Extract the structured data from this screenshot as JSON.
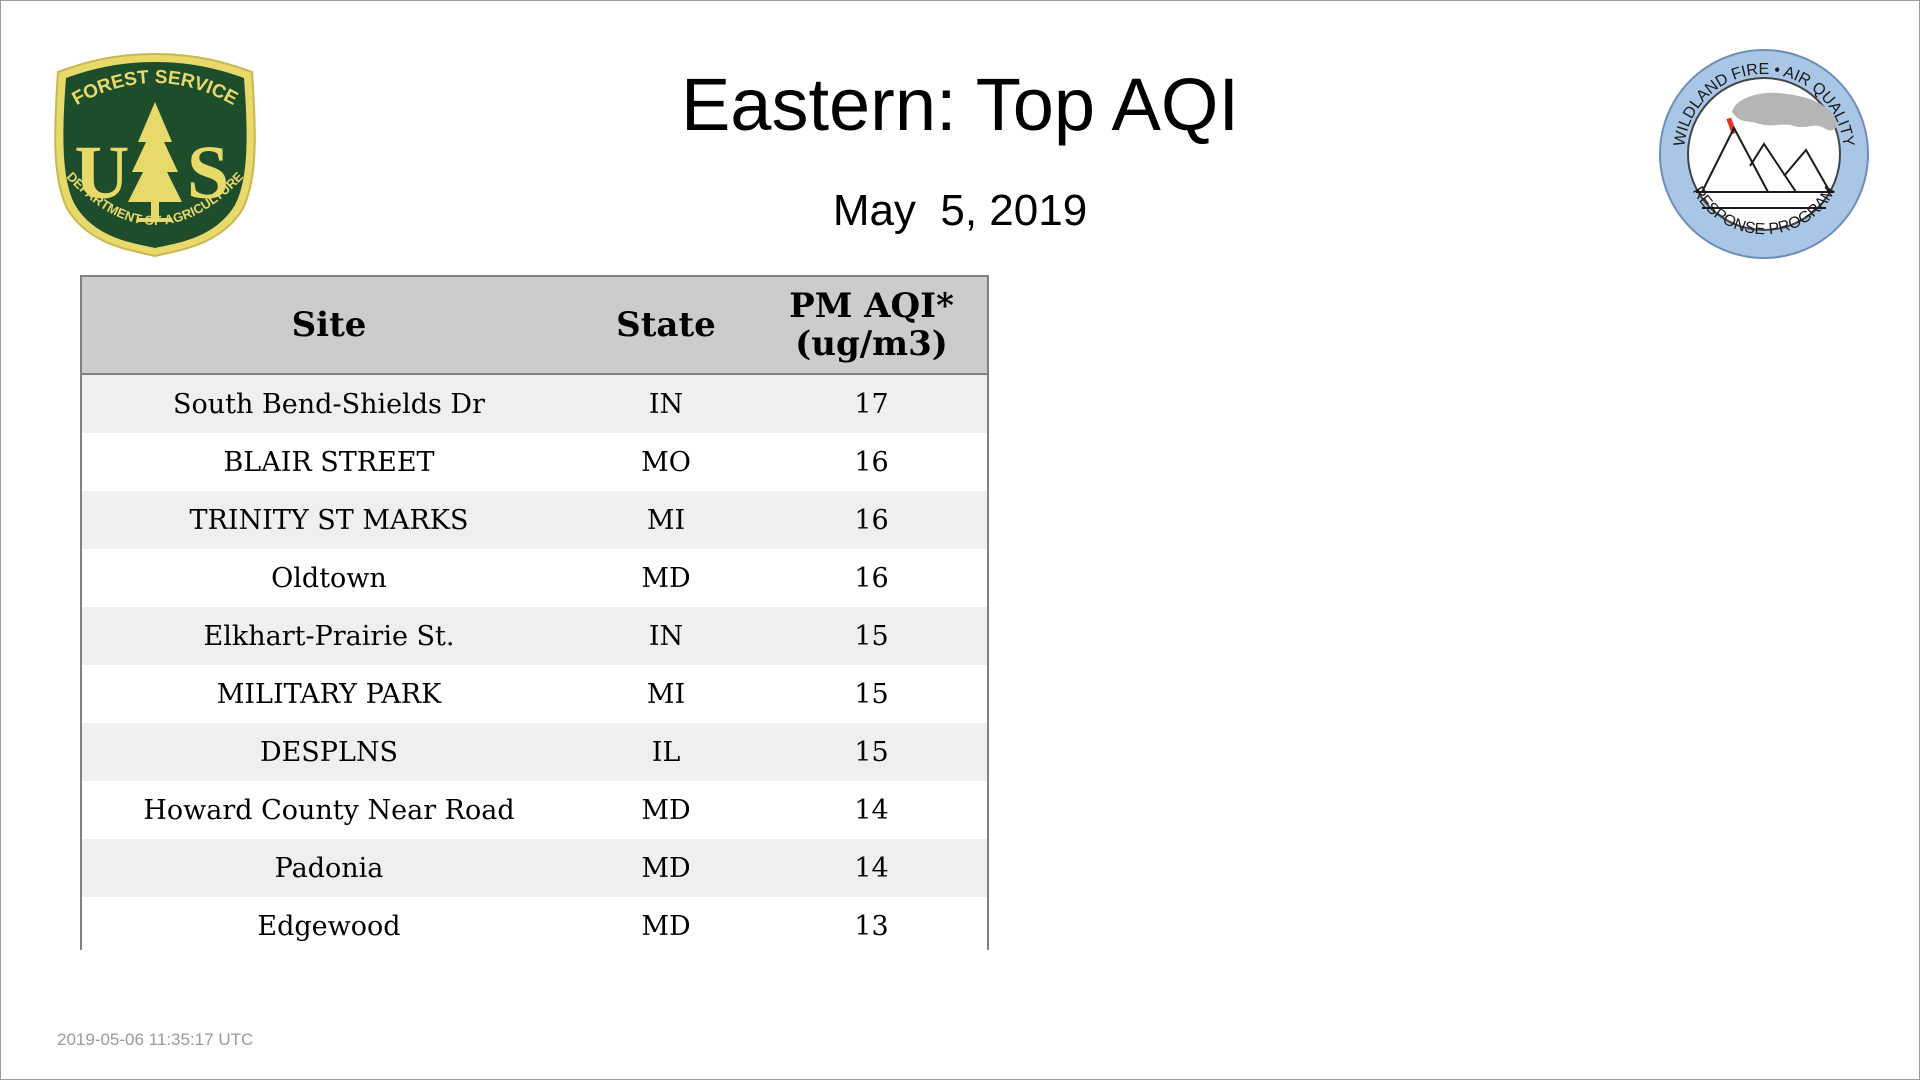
{
  "title": "Eastern: Top AQI",
  "date": "May  5, 2019",
  "logos": {
    "forest_service": {
      "top_text": "FOREST SERVICE",
      "initials_left": "U",
      "initials_right": "S",
      "bottom_text": "DEPARTMENT OF AGRICULTURE",
      "colors": {
        "shield": "#1e4d2b",
        "gold": "#e8d96b"
      }
    },
    "wildland_fire": {
      "top_text": "WILDLAND FIRE • AIR QUALITY",
      "bottom_text": "RESPONSE PROGRAM",
      "colors": {
        "ring": "#a9c6e6",
        "smoke": "#b5b5b5",
        "fire": "#d33a2c"
      }
    }
  },
  "table": {
    "headers": {
      "site": "Site",
      "state": "State",
      "aqi_line1": "PM AQI*",
      "aqi_line2": "(ug/m3)"
    },
    "rows": [
      {
        "site": "South Bend-Shields Dr",
        "state": "IN",
        "aqi": "17"
      },
      {
        "site": "BLAIR STREET",
        "state": "MO",
        "aqi": "16"
      },
      {
        "site": "TRINITY ST MARKS",
        "state": "MI",
        "aqi": "16"
      },
      {
        "site": "Oldtown",
        "state": "MD",
        "aqi": "16"
      },
      {
        "site": "Elkhart-Prairie St.",
        "state": "IN",
        "aqi": "15"
      },
      {
        "site": "MILITARY PARK",
        "state": "MI",
        "aqi": "15"
      },
      {
        "site": "DESPLNS",
        "state": "IL",
        "aqi": "15"
      },
      {
        "site": "Howard County Near Road",
        "state": "MD",
        "aqi": "14"
      },
      {
        "site": "Padonia",
        "state": "MD",
        "aqi": "14"
      },
      {
        "site": "Edgewood",
        "state": "MD",
        "aqi": "13"
      }
    ],
    "colors": {
      "header_bg": "#cccccc",
      "stripe_bg": "#efefef",
      "border": "#808080"
    }
  },
  "timestamp": "2019-05-06 11:35:17 UTC"
}
